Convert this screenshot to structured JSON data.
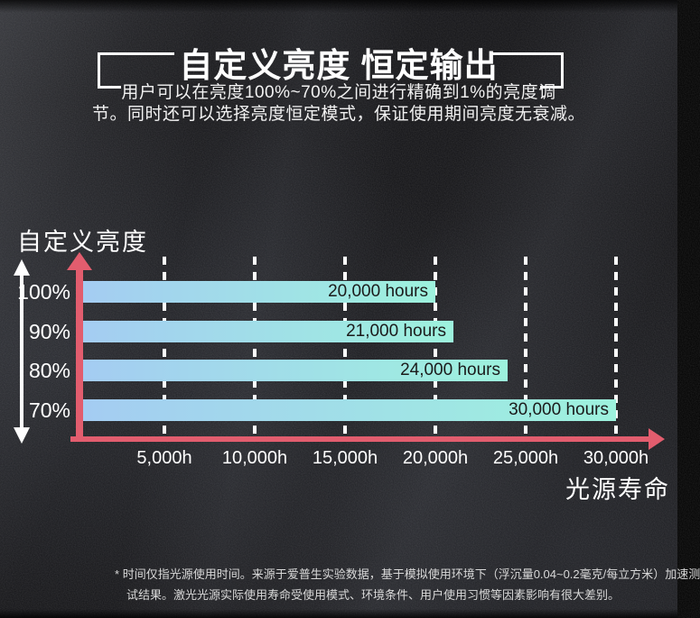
{
  "header": {
    "title": "自定义亮度 恒定输出",
    "subtitle_line1": "用户可以在亮度100%~70%之间进行精确到1%的亮度调",
    "subtitle_line2": "节。同时还可以选择亮度恒定模式，保证使用期间亮度无衰减。"
  },
  "chart_data": {
    "type": "bar",
    "orientation": "horizontal",
    "title": "自定义亮度",
    "xlabel": "光源寿命",
    "categories": [
      "100%",
      "90%",
      "80%",
      "70%"
    ],
    "values": [
      20000,
      21000,
      24000,
      30000
    ],
    "value_labels": [
      "20,000 hours",
      "21,000 hours",
      "24,000 hours",
      "30,000 hours"
    ],
    "x_tick_values": [
      5000,
      10000,
      15000,
      20000,
      25000,
      30000
    ],
    "x_tick_labels": [
      "5,000h",
      "10,000h",
      "15,000h",
      "20,000h",
      "25,000h",
      "30,000h"
    ],
    "xlim": [
      0,
      32000
    ],
    "grid": "vertical-dashed",
    "legend": "none",
    "colors": {
      "bar_gradient_start": "#a4ccf2",
      "bar_gradient_end": "#9df2dd",
      "axis_accent": "#e25d6e",
      "gridline": "#ffffff",
      "bar_text": "#1b1b1b",
      "text": "#ffffff",
      "background": "#121215"
    }
  },
  "footnote": {
    "marker": "*",
    "line1": "时间仅指光源使用时间。来源于爱普生实验数据，基于模拟使用环境下（浮沉量0.04~0.2毫克/每立方米）加速测",
    "line2": "试结果。激光光源实际使用寿命受使用模式、环境条件、用户使用习惯等因素影响有很大差别。"
  }
}
